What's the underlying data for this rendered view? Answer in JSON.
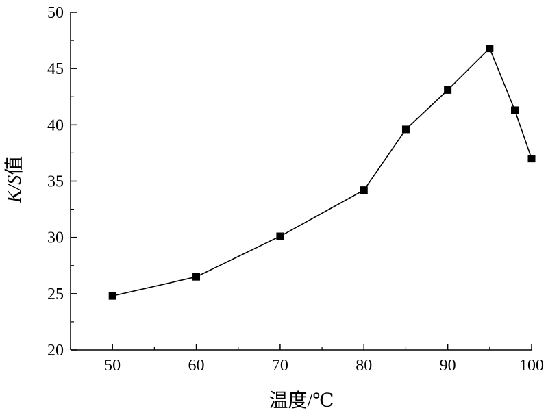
{
  "chart_data": {
    "type": "line",
    "xlabel": "温度/℃",
    "ylabel": "K/S值",
    "ylabel_italic_part": "K/S",
    "ylabel_rest": "值",
    "xlim": [
      45,
      100
    ],
    "ylim": [
      20,
      50
    ],
    "x_ticks": [
      "50",
      "60",
      "70",
      "80",
      "90",
      "100"
    ],
    "y_ticks": [
      "20",
      "25",
      "30",
      "35",
      "40",
      "45",
      "50"
    ],
    "grid": false,
    "marker": "square",
    "series": [
      {
        "x": [
          50,
          60,
          70,
          80,
          85,
          90,
          95,
          98,
          100
        ],
        "y": [
          24.8,
          26.5,
          30.1,
          34.2,
          39.6,
          43.1,
          46.8,
          41.3,
          37.0
        ]
      }
    ]
  }
}
